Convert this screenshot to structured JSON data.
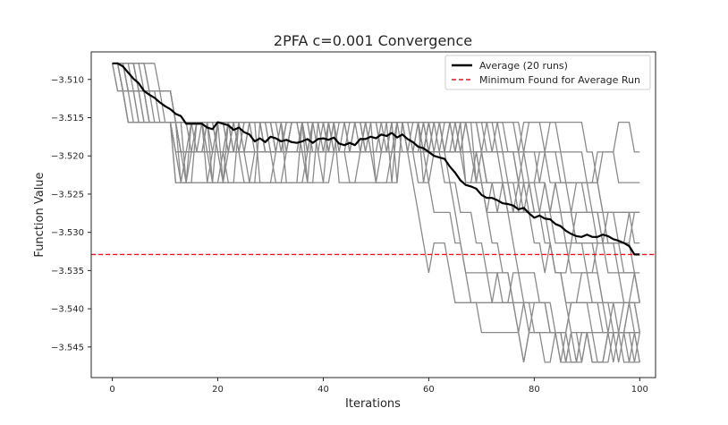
{
  "chart_data": {
    "type": "line",
    "title": "2PFA c=0.001 Convergence",
    "xlabel": "Iterations",
    "ylabel": "Function Value",
    "xlim": [
      -4,
      103
    ],
    "ylim": [
      -3.549,
      -3.5064
    ],
    "xticks": [
      0,
      20,
      40,
      60,
      80,
      100
    ],
    "yticks": [
      -3.51,
      -3.515,
      -3.52,
      -3.525,
      -3.53,
      -3.535,
      -3.54,
      -3.545
    ],
    "xtick_labels": [
      "0",
      "20",
      "40",
      "60",
      "80",
      "100"
    ],
    "ytick_labels": [
      "−3.510",
      "−3.515",
      "−3.520",
      "−3.525",
      "−3.530",
      "−3.535",
      "−3.540",
      "−3.545"
    ],
    "grid": false,
    "legend_position": "top-right",
    "legend": [
      {
        "label": "Average (20 runs)",
        "style": "solid",
        "color": "#000000"
      },
      {
        "label": "Minimum Found for Average Run",
        "style": "dashed",
        "color": "#e8151b"
      }
    ],
    "reference_line": {
      "name": "Minimum Found for Average Run",
      "y": -3.5329,
      "color": "#e8151b",
      "style": "dashed"
    },
    "run_levels": [
      -3.5079,
      -3.5115,
      -3.5156,
      -3.5195,
      -3.5235,
      -3.5274,
      -3.5314,
      -3.5353,
      -3.5392,
      -3.5431,
      -3.547
    ],
    "average_series": {
      "name": "Average (20 runs)",
      "color": "#000000",
      "x": [
        0,
        1,
        2,
        3,
        4,
        5,
        6,
        7,
        8,
        9,
        10,
        11,
        12,
        13,
        14,
        15,
        16,
        17,
        18,
        19,
        20,
        21,
        22,
        23,
        24,
        25,
        26,
        27,
        28,
        29,
        30,
        31,
        32,
        33,
        34,
        35,
        36,
        37,
        38,
        39,
        40,
        41,
        42,
        43,
        44,
        45,
        46,
        47,
        48,
        49,
        50,
        51,
        52,
        53,
        54,
        55,
        56,
        57,
        58,
        59,
        60,
        61,
        62,
        63,
        64,
        65,
        66,
        67,
        68,
        69,
        70,
        71,
        72,
        73,
        74,
        75,
        76,
        77,
        78,
        79,
        80,
        81,
        82,
        83,
        84,
        85,
        86,
        87,
        88,
        89,
        90,
        91,
        92,
        93,
        94,
        95,
        96,
        97,
        98,
        99,
        100
      ],
      "y": [
        -3.5079,
        -3.5079,
        -3.5083,
        -3.5091,
        -3.5099,
        -3.5105,
        -3.5115,
        -3.512,
        -3.5124,
        -3.513,
        -3.5135,
        -3.5139,
        -3.5145,
        -3.5148,
        -3.5158,
        -3.5158,
        -3.5158,
        -3.5158,
        -3.5163,
        -3.5165,
        -3.5156,
        -3.5158,
        -3.516,
        -3.5166,
        -3.5163,
        -3.5169,
        -3.5172,
        -3.5181,
        -3.5177,
        -3.5182,
        -3.5175,
        -3.5177,
        -3.5181,
        -3.5179,
        -3.5182,
        -3.5183,
        -3.5181,
        -3.5178,
        -3.5183,
        -3.5178,
        -3.5177,
        -3.5179,
        -3.5176,
        -3.5184,
        -3.5186,
        -3.5183,
        -3.5186,
        -3.5178,
        -3.5178,
        -3.5175,
        -3.5177,
        -3.5172,
        -3.5174,
        -3.517,
        -3.5176,
        -3.5172,
        -3.5178,
        -3.5182,
        -3.5188,
        -3.519,
        -3.5195,
        -3.52,
        -3.5202,
        -3.5204,
        -3.5214,
        -3.5222,
        -3.5232,
        -3.5238,
        -3.524,
        -3.5243,
        -3.5251,
        -3.5255,
        -3.5255,
        -3.5258,
        -3.5262,
        -3.5263,
        -3.5265,
        -3.527,
        -3.5268,
        -3.5275,
        -3.5281,
        -3.5278,
        -3.5282,
        -3.5283,
        -3.5289,
        -3.5292,
        -3.5298,
        -3.5302,
        -3.5305,
        -3.5306,
        -3.5303,
        -3.5306,
        -3.5306,
        -3.5303,
        -3.5305,
        -3.5309,
        -3.5311,
        -3.5314,
        -3.5318,
        -3.5329,
        -3.5329
      ]
    }
  }
}
